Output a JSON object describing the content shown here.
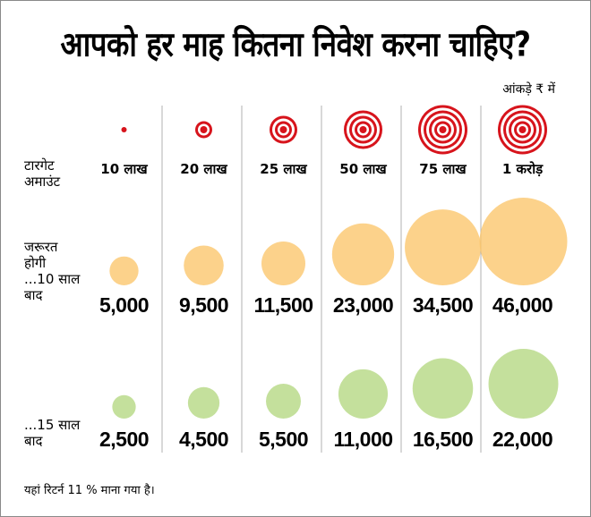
{
  "title": "आपको हर माह कितना निवेश करना चाहिए?",
  "unit_note": "आंकड़े ₹ में",
  "footnote": "यहां रिटर्न 11 % माना गया है।",
  "row_labels": {
    "target": "टारगेट\nअमाउंट",
    "after_10": "जरूरत\nहोगी\n...10 साल\nबाद",
    "after_15": "...15 साल\nबाद"
  },
  "colors": {
    "target_red": "#d7141c",
    "ten_year": "#fbc56a",
    "fifteen_year": "#c4e09c",
    "divider": "#b0b0b0"
  },
  "chart_data": {
    "type": "table",
    "title": "आपको हर माह कितना निवेश करना चाहिए?",
    "unit": "आंकड़े ₹ में",
    "categories": [
      "10 लाख",
      "20 लाख",
      "25 लाख",
      "50 लाख",
      "75 लाख",
      "1 करोड़"
    ],
    "target_amount_lakh": [
      10,
      20,
      25,
      50,
      75,
      100
    ],
    "target_rings": [
      0,
      1,
      2,
      3,
      4,
      4
    ],
    "series": [
      {
        "name": "जरूरत होगी ...10 साल बाद",
        "values": [
          5000,
          9500,
          11500,
          23000,
          34500,
          46000
        ],
        "labels": [
          "5,000",
          "9,500",
          "11,500",
          "23,000",
          "34,500",
          "46,000"
        ]
      },
      {
        "name": "...15 साल बाद",
        "values": [
          2500,
          4500,
          5500,
          11000,
          16500,
          22000
        ],
        "labels": [
          "2,500",
          "4,500",
          "5,500",
          "11,000",
          "16,500",
          "22,000"
        ]
      }
    ],
    "assumption": "यहां रिटर्न 11 % माना गया है।"
  }
}
